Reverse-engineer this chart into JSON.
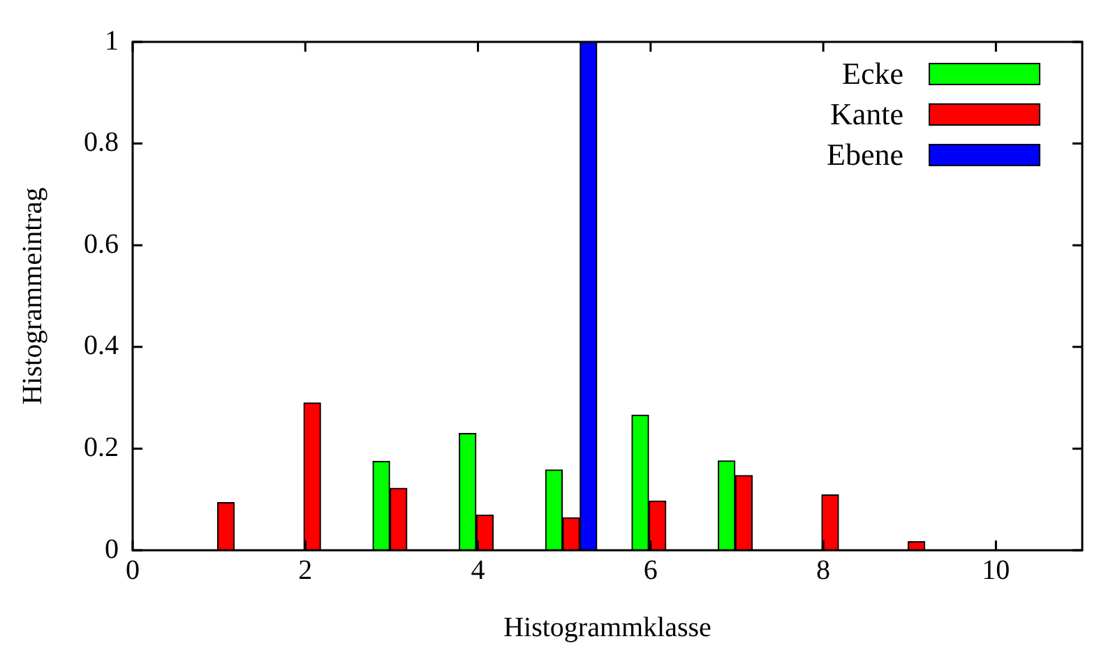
{
  "chart_data": {
    "type": "bar",
    "xlabel": "Histogrammklasse",
    "ylabel": "Histogrammeintrag",
    "xlim": [
      0,
      11
    ],
    "xticks": [
      0,
      2,
      4,
      6,
      8,
      10
    ],
    "ylim": [
      0,
      1
    ],
    "yticks": [
      0,
      0.2,
      0.4,
      0.6,
      0.8,
      1
    ],
    "legend": "top right",
    "series": [
      {
        "name": "Ecke",
        "color": "#00ff00",
        "x": [
          2.88,
          3.88,
          4.88,
          5.88,
          6.88
        ],
        "values": [
          0.175,
          0.23,
          0.158,
          0.266,
          0.176
        ]
      },
      {
        "name": "Kante",
        "color": "#ff0000",
        "x": [
          1.08,
          2.08,
          3.08,
          4.08,
          5.08,
          6.08,
          7.08,
          8.08,
          9.08
        ],
        "values": [
          0.094,
          0.29,
          0.122,
          0.069,
          0.064,
          0.097,
          0.147,
          0.109,
          0.017
        ]
      },
      {
        "name": "Ebene",
        "color": "#0000ff",
        "x": [
          5.28
        ],
        "values": [
          1.0
        ]
      }
    ]
  }
}
